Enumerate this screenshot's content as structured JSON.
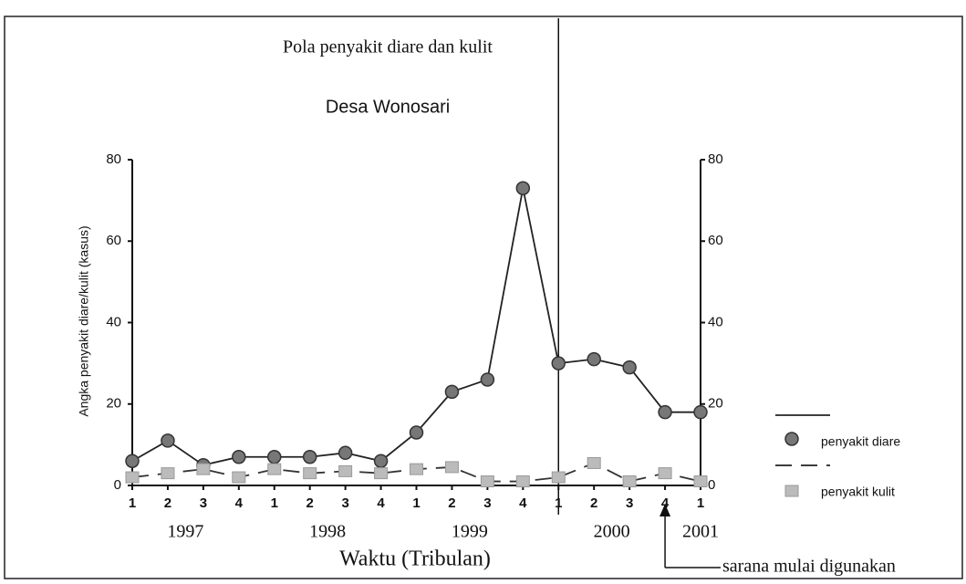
{
  "chart_data": {
    "type": "line",
    "title": "Pola  penyakit diare dan kulit",
    "subtitle": "Desa Wonosari",
    "y_label": "Angka penyakit diare/kulit (kasus)",
    "x_label": "Waktu (Tribulan)",
    "categories": [
      "1",
      "2",
      "3",
      "4",
      "1",
      "2",
      "3",
      "4",
      "1",
      "2",
      "3",
      "4",
      "1",
      "2",
      "3",
      "4",
      "1"
    ],
    "groups": [
      "1997",
      "1998",
      "1999",
      "2000",
      "2001"
    ],
    "series": [
      {
        "name": "penyakit diare",
        "color": "#555555",
        "values": [
          6,
          11,
          5,
          7,
          7,
          7,
          8,
          6,
          13,
          23,
          26,
          73,
          30,
          31,
          29,
          18,
          18
        ]
      },
      {
        "name": "penyakit kulit",
        "color": "#aaaaaa",
        "values": [
          2,
          3,
          4,
          2,
          4,
          3,
          3.5,
          3,
          4,
          4.5,
          1,
          1,
          2,
          5.5,
          1,
          3,
          1
        ]
      }
    ],
    "ylim": [
      0,
      80
    ],
    "yticks": [
      0,
      20,
      40,
      60,
      80
    ],
    "y2lim": [
      0,
      80
    ],
    "y2ticks": [
      0,
      20,
      40,
      60,
      80
    ],
    "annotation": "sarana mulai digunakan",
    "grid": false
  }
}
